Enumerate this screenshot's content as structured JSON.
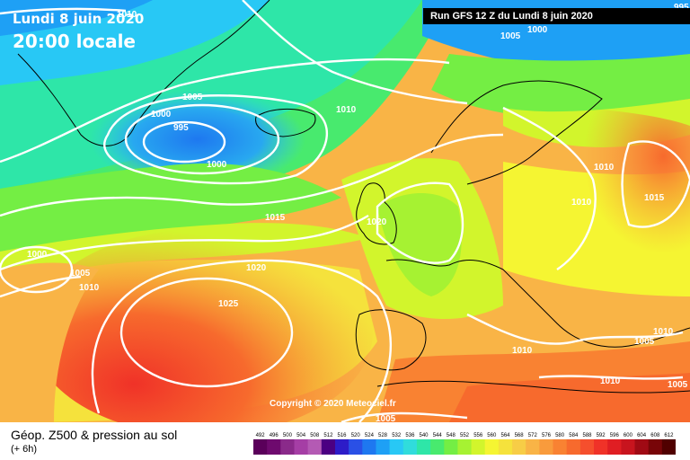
{
  "header": {
    "date_line": "Lundi 8 juin 2020",
    "time_line": "20:00 locale",
    "run_label": "Run GFS 12 Z du Lundi 8 juin 2020"
  },
  "copyright": "Copyright © 2020 Meteociel.fr",
  "legend": {
    "title": "Géop. Z500 & pression au sol",
    "subtitle": "(+ 6h)",
    "ticks": [
      "492",
      "496",
      "500",
      "504",
      "508",
      "512",
      "516",
      "520",
      "524",
      "528",
      "532",
      "536",
      "540",
      "544",
      "548",
      "552",
      "556",
      "560",
      "564",
      "568",
      "572",
      "576",
      "580",
      "584",
      "588",
      "592",
      "596",
      "600",
      "604",
      "608",
      "612"
    ],
    "colors": [
      "#5a005a",
      "#6e0a6e",
      "#8a2a8a",
      "#a53ea5",
      "#b45ab4",
      "#4b0082",
      "#2d1cc8",
      "#2a50e6",
      "#1e78f0",
      "#1ea0f5",
      "#28c8f5",
      "#30dcdc",
      "#2ee6a8",
      "#48ea6e",
      "#74ee44",
      "#a6f232",
      "#d2f52c",
      "#f5f532",
      "#f5e23c",
      "#f7cd46",
      "#f9b446",
      "#f99b3c",
      "#f98232",
      "#f76a2d",
      "#f54f2d",
      "#f03228",
      "#e01e23",
      "#c8141e",
      "#a00a14",
      "#780508",
      "#500000"
    ]
  },
  "isobars": [
    {
      "text": "1010"
    },
    {
      "text": "995"
    },
    {
      "text": "1005"
    },
    {
      "text": "1000"
    },
    {
      "text": "1005"
    },
    {
      "text": "1000"
    },
    {
      "text": "995"
    },
    {
      "text": "1000"
    },
    {
      "text": "1010"
    },
    {
      "text": "1015"
    },
    {
      "text": "1020"
    },
    {
      "text": "1000"
    },
    {
      "text": "1005"
    },
    {
      "text": "1010"
    },
    {
      "text": "1020"
    },
    {
      "text": "1025"
    },
    {
      "text": "1010"
    },
    {
      "text": "1010"
    },
    {
      "text": "1015"
    },
    {
      "text": "1010"
    },
    {
      "text": "1005"
    },
    {
      "text": "1010"
    },
    {
      "text": "1010"
    },
    {
      "text": "1005"
    },
    {
      "text": "1005"
    }
  ]
}
